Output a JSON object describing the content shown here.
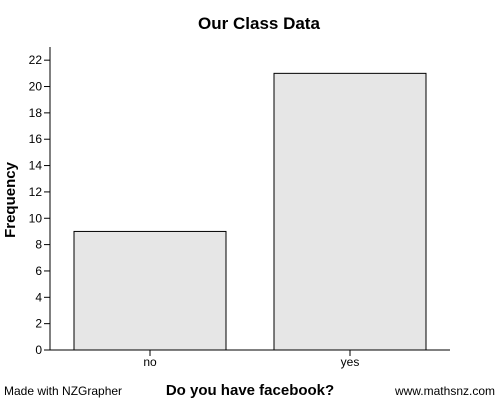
{
  "footer": {
    "left": "Made with NZGrapher",
    "right": "www.mathsnz.com"
  },
  "colors": {
    "bar_fill": "#e6e6e6",
    "bar_stroke": "#000000",
    "axis": "#000000",
    "text": "#000000",
    "background": "#ffffff"
  },
  "chart_data": {
    "type": "bar",
    "title": "Our Class Data",
    "xlabel": "Do you have facebook?",
    "ylabel": "Frequency",
    "categories": [
      "no",
      "yes"
    ],
    "values": [
      9,
      21
    ],
    "ylim": [
      0,
      23
    ],
    "yticks": [
      0,
      2,
      4,
      6,
      8,
      10,
      12,
      14,
      16,
      18,
      20,
      22
    ],
    "grid": false,
    "legend": "none"
  }
}
